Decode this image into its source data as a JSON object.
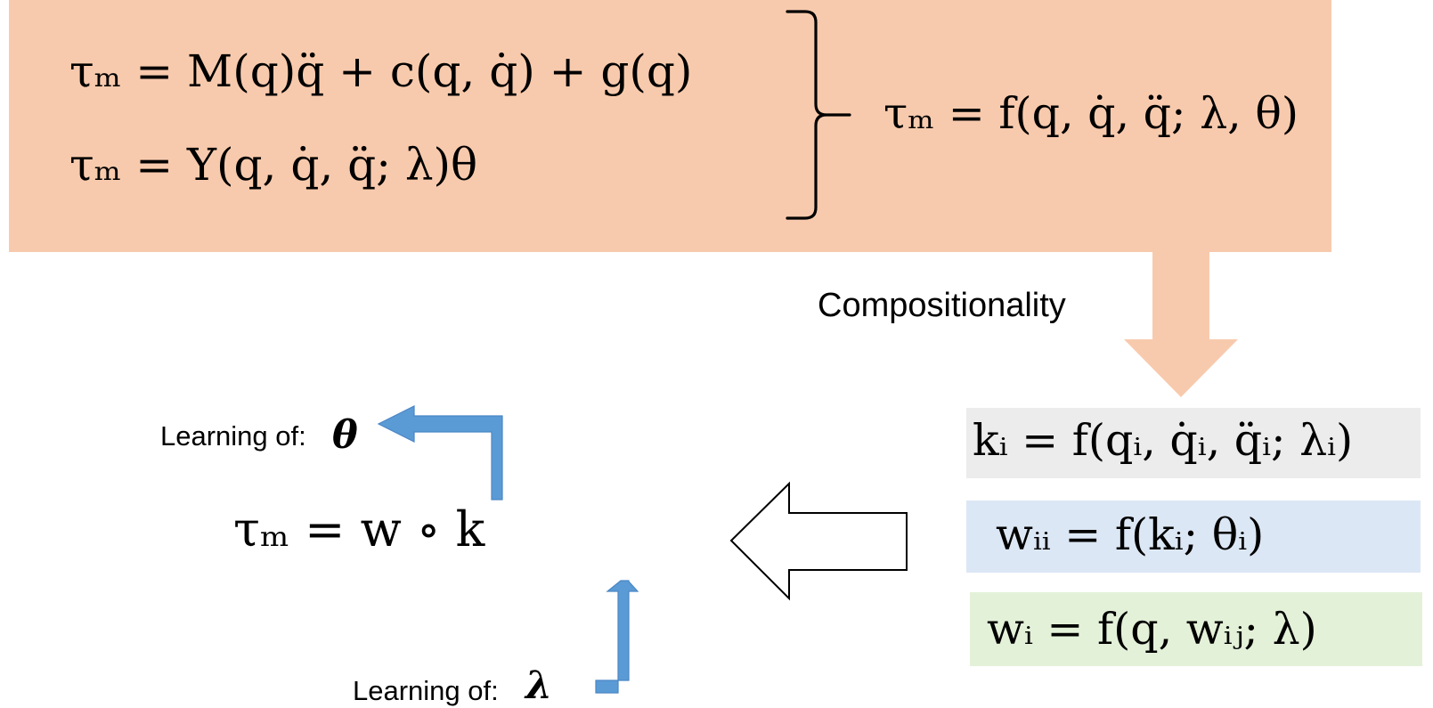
{
  "top_block": {
    "equation_1": "τₘ = M(q)q̈ + c(q, q̇) + g(q)",
    "equation_2": "τₘ = Y(q, q̇, q̈; λ)θ",
    "equation_3": "τₘ = f(q, q̇, q̈; λ, θ)"
  },
  "labels": {
    "compositionality": "Compositionality",
    "learning_theta": "Learning of:",
    "learning_lambda": "Learning of:",
    "theta_symbol": "θ",
    "lambda_symbol": "λ"
  },
  "main_equation": "τₘ = w ∘ k",
  "right_block": {
    "k_equation": "kᵢ = f(qᵢ, q̇ᵢ, q̈ᵢ; λᵢ)",
    "wii_equation": "wᵢᵢ = f(kᵢ; θᵢ)",
    "wi_equation": "wᵢ = f(q, wᵢⱼ; λ)"
  },
  "colors": {
    "top_panel": "#f8caad",
    "arrow_blue": "#5b9bd5",
    "k_box": "#ececec",
    "wii_box": "#dce7f5",
    "wi_box": "#e3f1d8"
  },
  "icons": {
    "top_bracket": "right-brace-icon",
    "compositionality_arrow": "down-arrow-icon",
    "hollow_arrow": "left-arrow-icon",
    "theta_arrow": "elbow-arrow-icon",
    "lambda_arrow": "elbow-arrow-icon"
  }
}
